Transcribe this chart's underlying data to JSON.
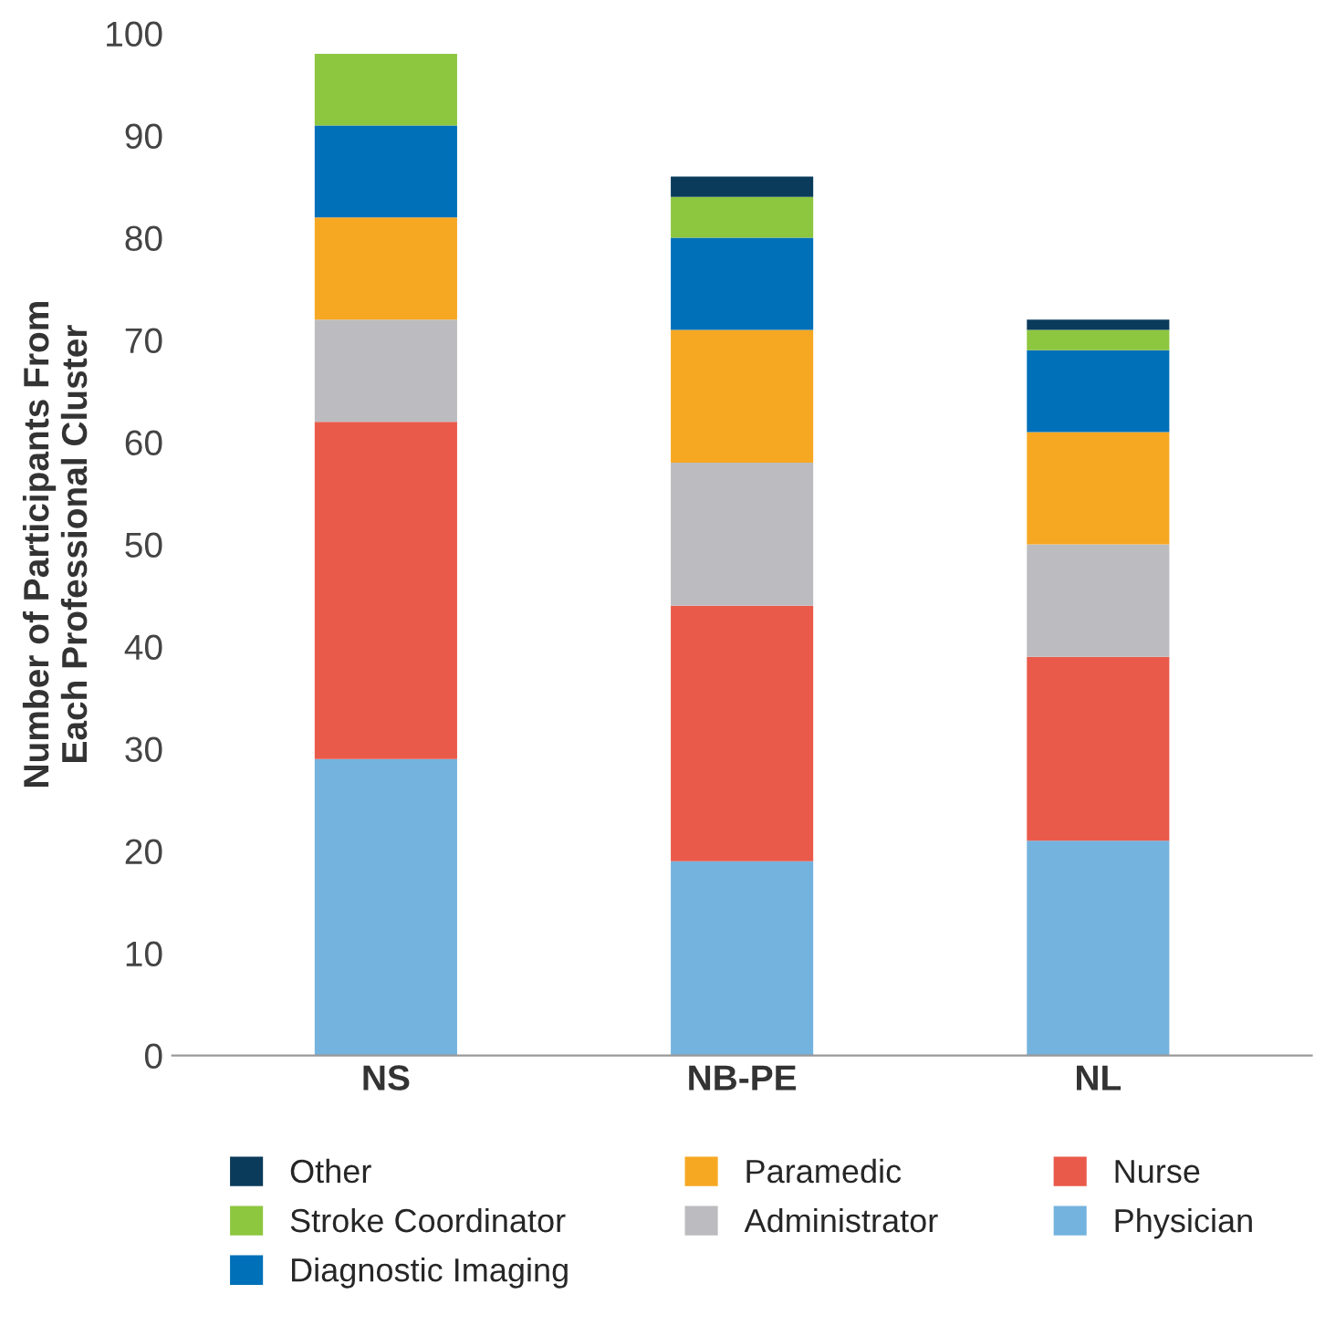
{
  "chart_data": {
    "type": "bar",
    "stacked": true,
    "ylabel": "Number of Participants From\nEach Professional Cluster",
    "categories": [
      "NS",
      "NB-PE",
      "NL"
    ],
    "series": [
      {
        "name": "Physician",
        "color": "#74b3de",
        "values": [
          29,
          19,
          21
        ]
      },
      {
        "name": "Nurse",
        "color": "#ea5a4a",
        "values": [
          33,
          25,
          18
        ]
      },
      {
        "name": "Administrator",
        "color": "#bcbcc0",
        "values": [
          10,
          14,
          11
        ]
      },
      {
        "name": "Paramedic",
        "color": "#f7a823",
        "values": [
          10,
          13,
          11
        ]
      },
      {
        "name": "Diagnostic Imaging",
        "color": "#0070b9",
        "values": [
          9,
          9,
          8
        ]
      },
      {
        "name": "Stroke Coordinator",
        "color": "#8dc63f",
        "values": [
          7,
          4,
          2
        ]
      },
      {
        "name": "Other",
        "color": "#0b3b5b",
        "values": [
          null,
          2,
          1
        ]
      }
    ],
    "ylim": [
      0,
      100
    ],
    "yticks": [
      0,
      10,
      20,
      30,
      40,
      50,
      60,
      70,
      80,
      90,
      100
    ],
    "grid": false,
    "legend": "bottom"
  }
}
